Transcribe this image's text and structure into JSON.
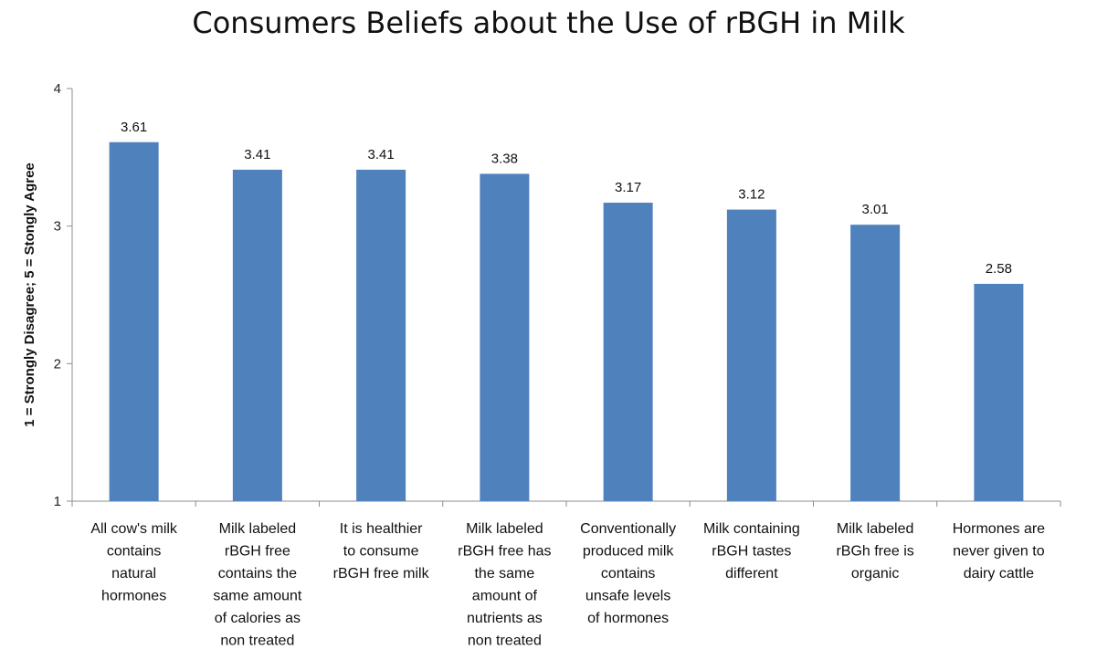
{
  "chart_data": {
    "type": "bar",
    "title": "Consumers Beliefs about the Use of rBGH in Milk",
    "ylabel": "1 = Strongly Disagree; 5 = Stongly Agree",
    "xlabel": "",
    "ylim": [
      1,
      4
    ],
    "yticks": [
      "1",
      "2",
      "3",
      "4"
    ],
    "grid": false,
    "categories": [
      "All cow's milk contains natural hormones",
      "Milk labeled rBGH free contains the same amount of calories as non treated",
      "It is healthier to consume rBGH free milk",
      "Milk labeled rBGH free has the same amount of nutrients as non treated",
      "Conventionally produced milk contains unsafe levels of hormones",
      "Milk containing rBGH tastes different",
      "Milk labeled rBGh free is organic",
      "Hormones are never given to dairy cattle"
    ],
    "category_lines": [
      [
        "All cow's milk",
        "contains",
        "natural",
        "hormones"
      ],
      [
        "Milk labeled",
        "rBGH free",
        "contains the",
        "same amount",
        "of calories as",
        "non treated"
      ],
      [
        "It is healthier",
        "to consume",
        "rBGH free milk"
      ],
      [
        "Milk labeled",
        "rBGH free has",
        "the same",
        "amount of",
        "nutrients as",
        "non treated"
      ],
      [
        "Conventionally",
        "produced milk",
        "contains",
        "unsafe levels",
        "of hormones"
      ],
      [
        "Milk containing",
        "rBGH tastes",
        "different"
      ],
      [
        "Milk labeled",
        "rBGh free is",
        "organic"
      ],
      [
        "Hormones are",
        "never given to",
        "dairy cattle"
      ]
    ],
    "values": [
      3.61,
      3.41,
      3.41,
      3.38,
      3.17,
      3.12,
      3.01,
      2.58
    ],
    "value_labels": [
      "3.61",
      "3.41",
      "3.41",
      "3.38",
      "3.17",
      "3.12",
      "3.01",
      "2.58"
    ],
    "bar_color": "#4f81bd"
  }
}
